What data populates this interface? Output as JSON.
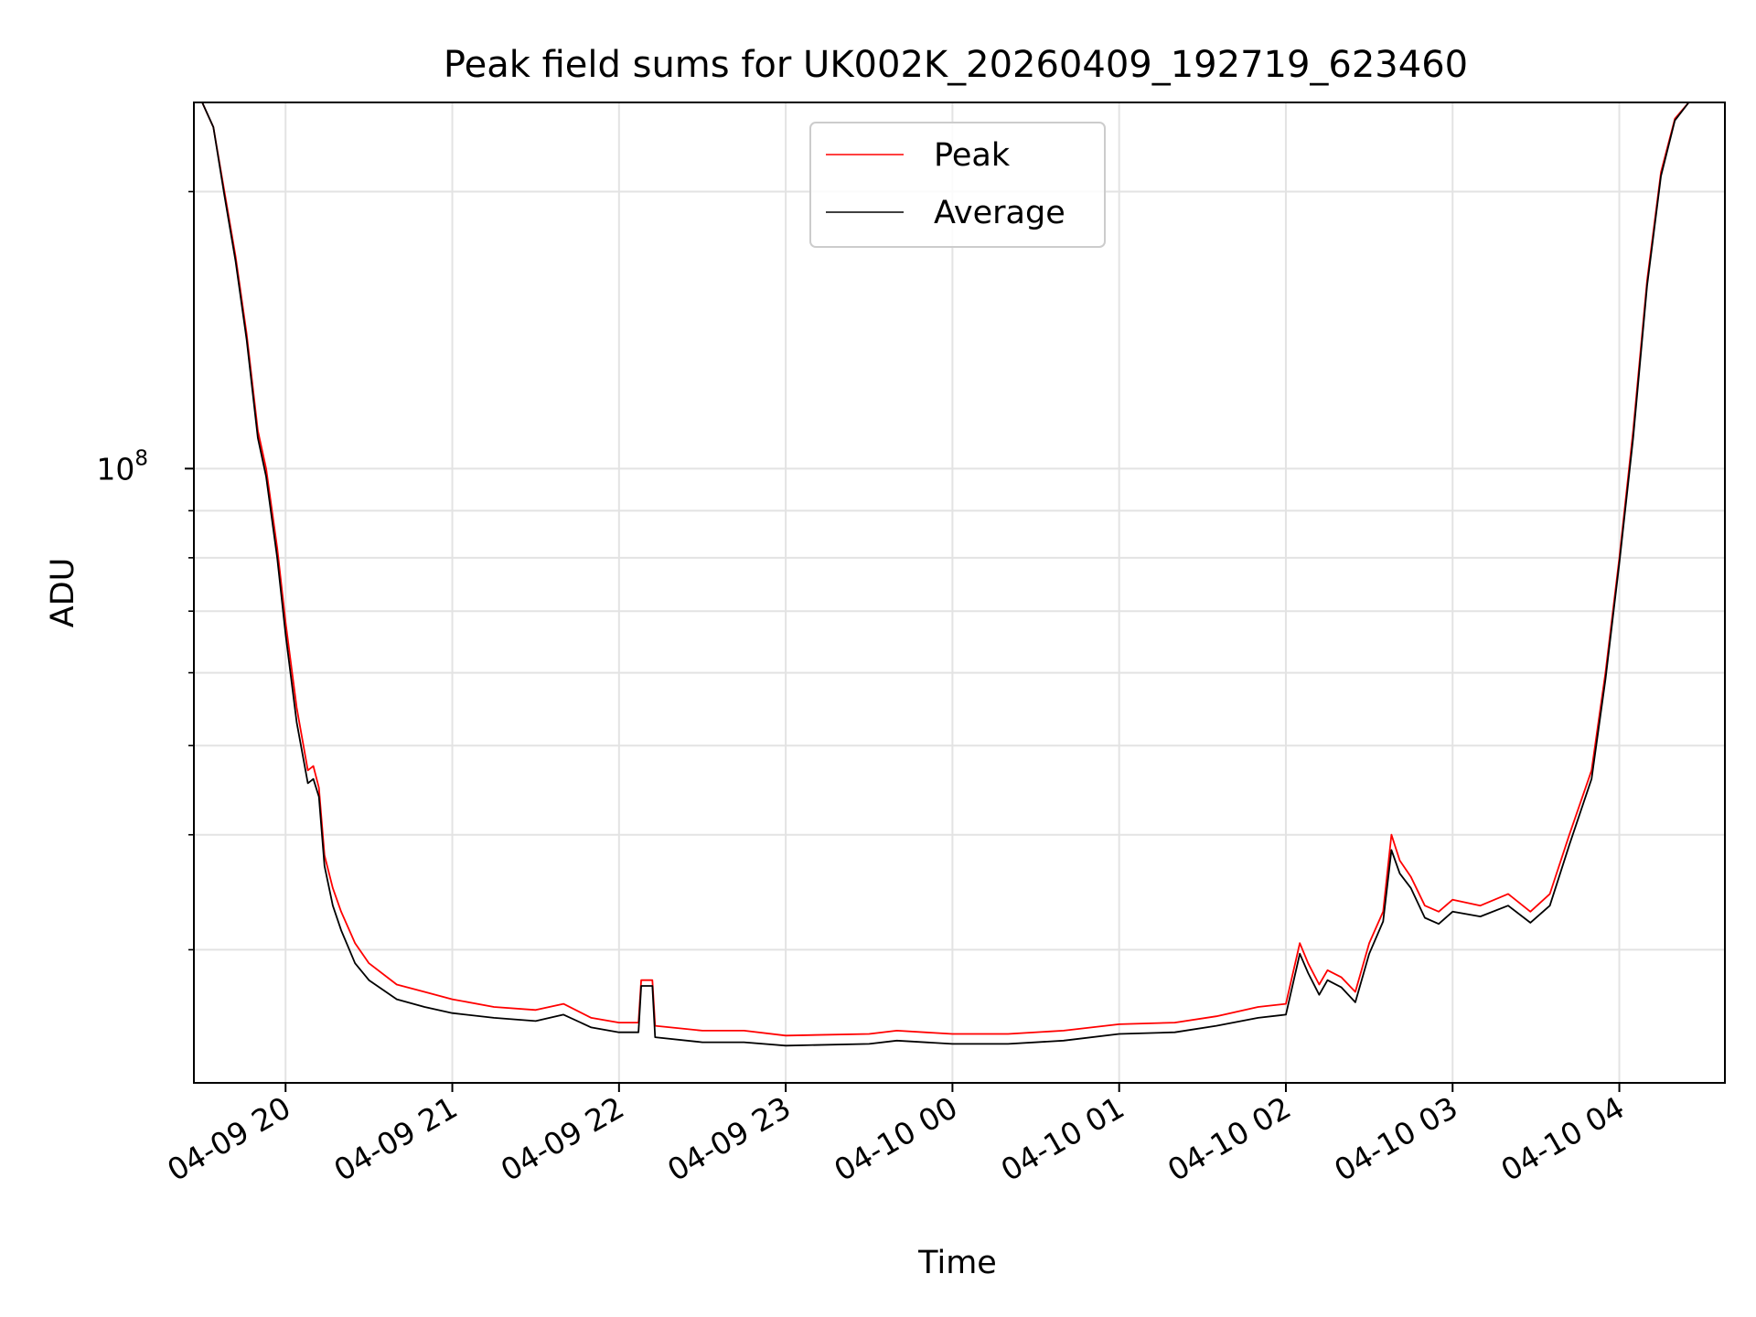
{
  "chart_data": {
    "type": "line",
    "title": "Peak field sums for UK002K_20260409_192719_623460",
    "xlabel": "Time",
    "ylabel": "ADU",
    "y_scale": "log",
    "ylim": [
      21500000,
      250000000
    ],
    "xlim": [
      "2026-04-09 19:27",
      "2026-04-10 04:38"
    ],
    "x_ticks": [
      {
        "t": "2026-04-09 20:00",
        "label": "04-09 20"
      },
      {
        "t": "2026-04-09 21:00",
        "label": "04-09 21"
      },
      {
        "t": "2026-04-09 22:00",
        "label": "04-09 22"
      },
      {
        "t": "2026-04-09 23:00",
        "label": "04-09 23"
      },
      {
        "t": "2026-04-10 00:00",
        "label": "04-10 00"
      },
      {
        "t": "2026-04-10 01:00",
        "label": "04-10 01"
      },
      {
        "t": "2026-04-10 02:00",
        "label": "04-10 02"
      },
      {
        "t": "2026-04-10 03:00",
        "label": "04-10 03"
      },
      {
        "t": "2026-04-10 04:00",
        "label": "04-10 04"
      }
    ],
    "y_major_ticks": [
      {
        "value": 100000000,
        "base": "10",
        "exp": "8"
      }
    ],
    "y_minor_ticks": [
      30000000,
      40000000,
      50000000,
      60000000,
      70000000,
      80000000,
      90000000,
      200000000
    ],
    "grid": true,
    "legend_position": "upper-center",
    "series": [
      {
        "name": "Peak",
        "color": "#ff0000",
        "points": [
          [
            "2026-04-09 19:30",
            250000000
          ],
          [
            "2026-04-09 19:34",
            235000000
          ],
          [
            "2026-04-09 19:38",
            200000000
          ],
          [
            "2026-04-09 19:42",
            170000000
          ],
          [
            "2026-04-09 19:46",
            140000000
          ],
          [
            "2026-04-09 19:50",
            110000000
          ],
          [
            "2026-04-09 19:53",
            100000000
          ],
          [
            "2026-04-09 19:57",
            82000000
          ],
          [
            "2026-04-09 20:00",
            68000000
          ],
          [
            "2026-04-09 20:04",
            55000000
          ],
          [
            "2026-04-09 20:08",
            47000000
          ],
          [
            "2026-04-09 20:10",
            47500000
          ],
          [
            "2026-04-09 20:12",
            45000000
          ],
          [
            "2026-04-09 20:14",
            38000000
          ],
          [
            "2026-04-09 20:17",
            35000000
          ],
          [
            "2026-04-09 20:20",
            33000000
          ],
          [
            "2026-04-09 20:25",
            30500000
          ],
          [
            "2026-04-09 20:30",
            29000000
          ],
          [
            "2026-04-09 20:40",
            27500000
          ],
          [
            "2026-04-09 20:50",
            27000000
          ],
          [
            "2026-04-09 21:00",
            26500000
          ],
          [
            "2026-04-09 21:15",
            26000000
          ],
          [
            "2026-04-09 21:30",
            25800000
          ],
          [
            "2026-04-09 21:40",
            26200000
          ],
          [
            "2026-04-09 21:50",
            25300000
          ],
          [
            "2026-04-09 22:00",
            25000000
          ],
          [
            "2026-04-09 22:07",
            25000000
          ],
          [
            "2026-04-09 22:08",
            27800000
          ],
          [
            "2026-04-09 22:12",
            27800000
          ],
          [
            "2026-04-09 22:13",
            24800000
          ],
          [
            "2026-04-09 22:30",
            24500000
          ],
          [
            "2026-04-09 22:45",
            24500000
          ],
          [
            "2026-04-09 23:00",
            24200000
          ],
          [
            "2026-04-09 23:30",
            24300000
          ],
          [
            "2026-04-09 23:40",
            24500000
          ],
          [
            "2026-04-10 00:00",
            24300000
          ],
          [
            "2026-04-10 00:20",
            24300000
          ],
          [
            "2026-04-10 00:40",
            24500000
          ],
          [
            "2026-04-10 01:00",
            24900000
          ],
          [
            "2026-04-10 01:20",
            25000000
          ],
          [
            "2026-04-10 01:35",
            25400000
          ],
          [
            "2026-04-10 01:50",
            26000000
          ],
          [
            "2026-04-10 02:00",
            26200000
          ],
          [
            "2026-04-10 02:05",
            30500000
          ],
          [
            "2026-04-10 02:08",
            29000000
          ],
          [
            "2026-04-10 02:12",
            27500000
          ],
          [
            "2026-04-10 02:15",
            28500000
          ],
          [
            "2026-04-10 02:20",
            28000000
          ],
          [
            "2026-04-10 02:25",
            27000000
          ],
          [
            "2026-04-10 02:30",
            30500000
          ],
          [
            "2026-04-10 02:35",
            33000000
          ],
          [
            "2026-04-10 02:38",
            40000000
          ],
          [
            "2026-04-10 02:41",
            37500000
          ],
          [
            "2026-04-10 02:45",
            36000000
          ],
          [
            "2026-04-10 02:50",
            33500000
          ],
          [
            "2026-04-10 02:55",
            33000000
          ],
          [
            "2026-04-10 03:00",
            34000000
          ],
          [
            "2026-04-10 03:10",
            33500000
          ],
          [
            "2026-04-10 03:20",
            34500000
          ],
          [
            "2026-04-10 03:28",
            33000000
          ],
          [
            "2026-04-10 03:35",
            34500000
          ],
          [
            "2026-04-10 03:42",
            40000000
          ],
          [
            "2026-04-10 03:50",
            47000000
          ],
          [
            "2026-04-10 03:55",
            60000000
          ],
          [
            "2026-04-10 04:00",
            80000000
          ],
          [
            "2026-04-10 04:05",
            110000000
          ],
          [
            "2026-04-10 04:10",
            160000000
          ],
          [
            "2026-04-10 04:15",
            210000000
          ],
          [
            "2026-04-10 04:20",
            240000000
          ],
          [
            "2026-04-10 04:25",
            250000000
          ],
          [
            "2026-04-10 04:38",
            250000000
          ]
        ]
      },
      {
        "name": "Average",
        "color": "#000000",
        "points": [
          [
            "2026-04-09 19:30",
            250000000
          ],
          [
            "2026-04-09 19:34",
            235000000
          ],
          [
            "2026-04-09 19:38",
            198000000
          ],
          [
            "2026-04-09 19:42",
            168000000
          ],
          [
            "2026-04-09 19:46",
            138000000
          ],
          [
            "2026-04-09 19:50",
            108000000
          ],
          [
            "2026-04-09 19:53",
            98000000
          ],
          [
            "2026-04-09 19:57",
            80000000
          ],
          [
            "2026-04-09 20:00",
            66000000
          ],
          [
            "2026-04-09 20:04",
            53000000
          ],
          [
            "2026-04-09 20:08",
            45500000
          ],
          [
            "2026-04-09 20:10",
            46000000
          ],
          [
            "2026-04-09 20:12",
            44000000
          ],
          [
            "2026-04-09 20:14",
            37000000
          ],
          [
            "2026-04-09 20:17",
            33500000
          ],
          [
            "2026-04-09 20:20",
            31500000
          ],
          [
            "2026-04-09 20:25",
            29000000
          ],
          [
            "2026-04-09 20:30",
            27800000
          ],
          [
            "2026-04-09 20:40",
            26500000
          ],
          [
            "2026-04-09 20:50",
            26000000
          ],
          [
            "2026-04-09 21:00",
            25600000
          ],
          [
            "2026-04-09 21:15",
            25300000
          ],
          [
            "2026-04-09 21:30",
            25100000
          ],
          [
            "2026-04-09 21:40",
            25500000
          ],
          [
            "2026-04-09 21:50",
            24700000
          ],
          [
            "2026-04-09 22:00",
            24400000
          ],
          [
            "2026-04-09 22:07",
            24400000
          ],
          [
            "2026-04-09 22:08",
            27400000
          ],
          [
            "2026-04-09 22:12",
            27400000
          ],
          [
            "2026-04-09 22:13",
            24100000
          ],
          [
            "2026-04-09 22:30",
            23800000
          ],
          [
            "2026-04-09 22:45",
            23800000
          ],
          [
            "2026-04-09 23:00",
            23600000
          ],
          [
            "2026-04-09 23:30",
            23700000
          ],
          [
            "2026-04-09 23:40",
            23900000
          ],
          [
            "2026-04-10 00:00",
            23700000
          ],
          [
            "2026-04-10 00:20",
            23700000
          ],
          [
            "2026-04-10 00:40",
            23900000
          ],
          [
            "2026-04-10 01:00",
            24300000
          ],
          [
            "2026-04-10 01:20",
            24400000
          ],
          [
            "2026-04-10 01:35",
            24800000
          ],
          [
            "2026-04-10 01:50",
            25300000
          ],
          [
            "2026-04-10 02:00",
            25500000
          ],
          [
            "2026-04-10 02:05",
            29700000
          ],
          [
            "2026-04-10 02:08",
            28300000
          ],
          [
            "2026-04-10 02:12",
            26800000
          ],
          [
            "2026-04-10 02:15",
            27800000
          ],
          [
            "2026-04-10 02:20",
            27300000
          ],
          [
            "2026-04-10 02:25",
            26300000
          ],
          [
            "2026-04-10 02:30",
            29700000
          ],
          [
            "2026-04-10 02:35",
            32200000
          ],
          [
            "2026-04-10 02:38",
            38500000
          ],
          [
            "2026-04-10 02:41",
            36300000
          ],
          [
            "2026-04-10 02:45",
            35000000
          ],
          [
            "2026-04-10 02:50",
            32500000
          ],
          [
            "2026-04-10 02:55",
            32000000
          ],
          [
            "2026-04-10 03:00",
            33000000
          ],
          [
            "2026-04-10 03:10",
            32600000
          ],
          [
            "2026-04-10 03:20",
            33500000
          ],
          [
            "2026-04-10 03:28",
            32100000
          ],
          [
            "2026-04-10 03:35",
            33500000
          ],
          [
            "2026-04-10 03:42",
            39000000
          ],
          [
            "2026-04-10 03:50",
            46000000
          ],
          [
            "2026-04-10 03:55",
            59000000
          ],
          [
            "2026-04-10 04:00",
            79000000
          ],
          [
            "2026-04-10 04:05",
            108000000
          ],
          [
            "2026-04-10 04:10",
            158000000
          ],
          [
            "2026-04-10 04:15",
            208000000
          ],
          [
            "2026-04-10 04:20",
            239000000
          ],
          [
            "2026-04-10 04:25",
            250000000
          ],
          [
            "2026-04-10 04:38",
            250000000
          ]
        ]
      }
    ]
  }
}
